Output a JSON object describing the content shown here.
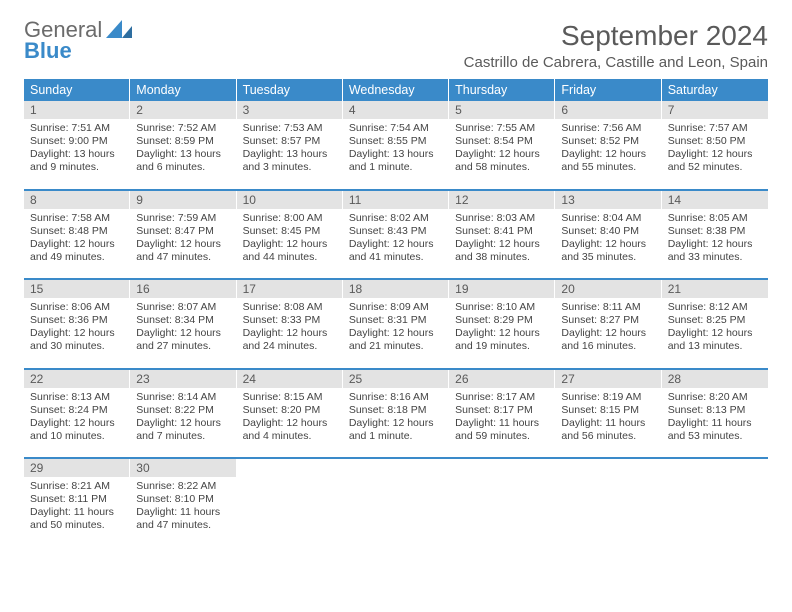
{
  "brand": {
    "word1": "General",
    "word2": "Blue"
  },
  "title": "September 2024",
  "location": "Castrillo de Cabrera, Castille and Leon, Spain",
  "colors": {
    "accent": "#3a8ac9",
    "header_bg": "#3a8ac9",
    "header_text": "#ffffff",
    "daynum_bg": "#e3e3e3",
    "text": "#444444",
    "muted": "#5a5a5a",
    "page_bg": "#ffffff"
  },
  "dow": [
    "Sunday",
    "Monday",
    "Tuesday",
    "Wednesday",
    "Thursday",
    "Friday",
    "Saturday"
  ],
  "weeks": [
    [
      {
        "n": "1",
        "sr": "Sunrise: 7:51 AM",
        "ss": "Sunset: 9:00 PM",
        "d1": "Daylight: 13 hours",
        "d2": "and 9 minutes."
      },
      {
        "n": "2",
        "sr": "Sunrise: 7:52 AM",
        "ss": "Sunset: 8:59 PM",
        "d1": "Daylight: 13 hours",
        "d2": "and 6 minutes."
      },
      {
        "n": "3",
        "sr": "Sunrise: 7:53 AM",
        "ss": "Sunset: 8:57 PM",
        "d1": "Daylight: 13 hours",
        "d2": "and 3 minutes."
      },
      {
        "n": "4",
        "sr": "Sunrise: 7:54 AM",
        "ss": "Sunset: 8:55 PM",
        "d1": "Daylight: 13 hours",
        "d2": "and 1 minute."
      },
      {
        "n": "5",
        "sr": "Sunrise: 7:55 AM",
        "ss": "Sunset: 8:54 PM",
        "d1": "Daylight: 12 hours",
        "d2": "and 58 minutes."
      },
      {
        "n": "6",
        "sr": "Sunrise: 7:56 AM",
        "ss": "Sunset: 8:52 PM",
        "d1": "Daylight: 12 hours",
        "d2": "and 55 minutes."
      },
      {
        "n": "7",
        "sr": "Sunrise: 7:57 AM",
        "ss": "Sunset: 8:50 PM",
        "d1": "Daylight: 12 hours",
        "d2": "and 52 minutes."
      }
    ],
    [
      {
        "n": "8",
        "sr": "Sunrise: 7:58 AM",
        "ss": "Sunset: 8:48 PM",
        "d1": "Daylight: 12 hours",
        "d2": "and 49 minutes."
      },
      {
        "n": "9",
        "sr": "Sunrise: 7:59 AM",
        "ss": "Sunset: 8:47 PM",
        "d1": "Daylight: 12 hours",
        "d2": "and 47 minutes."
      },
      {
        "n": "10",
        "sr": "Sunrise: 8:00 AM",
        "ss": "Sunset: 8:45 PM",
        "d1": "Daylight: 12 hours",
        "d2": "and 44 minutes."
      },
      {
        "n": "11",
        "sr": "Sunrise: 8:02 AM",
        "ss": "Sunset: 8:43 PM",
        "d1": "Daylight: 12 hours",
        "d2": "and 41 minutes."
      },
      {
        "n": "12",
        "sr": "Sunrise: 8:03 AM",
        "ss": "Sunset: 8:41 PM",
        "d1": "Daylight: 12 hours",
        "d2": "and 38 minutes."
      },
      {
        "n": "13",
        "sr": "Sunrise: 8:04 AM",
        "ss": "Sunset: 8:40 PM",
        "d1": "Daylight: 12 hours",
        "d2": "and 35 minutes."
      },
      {
        "n": "14",
        "sr": "Sunrise: 8:05 AM",
        "ss": "Sunset: 8:38 PM",
        "d1": "Daylight: 12 hours",
        "d2": "and 33 minutes."
      }
    ],
    [
      {
        "n": "15",
        "sr": "Sunrise: 8:06 AM",
        "ss": "Sunset: 8:36 PM",
        "d1": "Daylight: 12 hours",
        "d2": "and 30 minutes."
      },
      {
        "n": "16",
        "sr": "Sunrise: 8:07 AM",
        "ss": "Sunset: 8:34 PM",
        "d1": "Daylight: 12 hours",
        "d2": "and 27 minutes."
      },
      {
        "n": "17",
        "sr": "Sunrise: 8:08 AM",
        "ss": "Sunset: 8:33 PM",
        "d1": "Daylight: 12 hours",
        "d2": "and 24 minutes."
      },
      {
        "n": "18",
        "sr": "Sunrise: 8:09 AM",
        "ss": "Sunset: 8:31 PM",
        "d1": "Daylight: 12 hours",
        "d2": "and 21 minutes."
      },
      {
        "n": "19",
        "sr": "Sunrise: 8:10 AM",
        "ss": "Sunset: 8:29 PM",
        "d1": "Daylight: 12 hours",
        "d2": "and 19 minutes."
      },
      {
        "n": "20",
        "sr": "Sunrise: 8:11 AM",
        "ss": "Sunset: 8:27 PM",
        "d1": "Daylight: 12 hours",
        "d2": "and 16 minutes."
      },
      {
        "n": "21",
        "sr": "Sunrise: 8:12 AM",
        "ss": "Sunset: 8:25 PM",
        "d1": "Daylight: 12 hours",
        "d2": "and 13 minutes."
      }
    ],
    [
      {
        "n": "22",
        "sr": "Sunrise: 8:13 AM",
        "ss": "Sunset: 8:24 PM",
        "d1": "Daylight: 12 hours",
        "d2": "and 10 minutes."
      },
      {
        "n": "23",
        "sr": "Sunrise: 8:14 AM",
        "ss": "Sunset: 8:22 PM",
        "d1": "Daylight: 12 hours",
        "d2": "and 7 minutes."
      },
      {
        "n": "24",
        "sr": "Sunrise: 8:15 AM",
        "ss": "Sunset: 8:20 PM",
        "d1": "Daylight: 12 hours",
        "d2": "and 4 minutes."
      },
      {
        "n": "25",
        "sr": "Sunrise: 8:16 AM",
        "ss": "Sunset: 8:18 PM",
        "d1": "Daylight: 12 hours",
        "d2": "and 1 minute."
      },
      {
        "n": "26",
        "sr": "Sunrise: 8:17 AM",
        "ss": "Sunset: 8:17 PM",
        "d1": "Daylight: 11 hours",
        "d2": "and 59 minutes."
      },
      {
        "n": "27",
        "sr": "Sunrise: 8:19 AM",
        "ss": "Sunset: 8:15 PM",
        "d1": "Daylight: 11 hours",
        "d2": "and 56 minutes."
      },
      {
        "n": "28",
        "sr": "Sunrise: 8:20 AM",
        "ss": "Sunset: 8:13 PM",
        "d1": "Daylight: 11 hours",
        "d2": "and 53 minutes."
      }
    ],
    [
      {
        "n": "29",
        "sr": "Sunrise: 8:21 AM",
        "ss": "Sunset: 8:11 PM",
        "d1": "Daylight: 11 hours",
        "d2": "and 50 minutes."
      },
      {
        "n": "30",
        "sr": "Sunrise: 8:22 AM",
        "ss": "Sunset: 8:10 PM",
        "d1": "Daylight: 11 hours",
        "d2": "and 47 minutes."
      },
      {
        "empty": true
      },
      {
        "empty": true
      },
      {
        "empty": true
      },
      {
        "empty": true
      },
      {
        "empty": true
      }
    ]
  ]
}
